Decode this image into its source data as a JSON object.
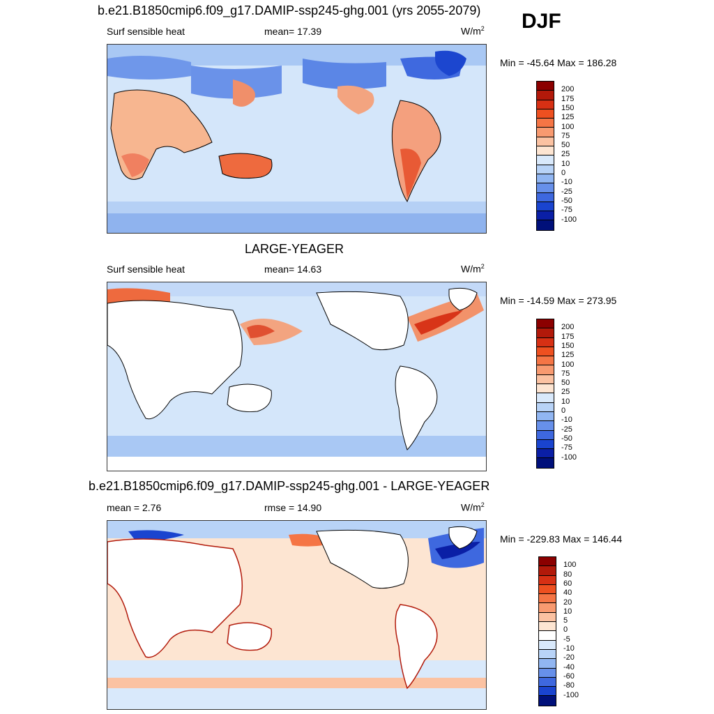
{
  "main_title": "DJF",
  "panels": [
    {
      "title": "b.e21.B1850cmip6.f09_g17.DAMIP-ssp245-ghg.001 (yrs 2055-2079)",
      "left_label": "Surf sensible heat",
      "center_label": "mean=  17.39",
      "unit": "W/m",
      "unit_sup": "2",
      "minmax": "Min = -45.64 Max = 186.28",
      "colorbar": {
        "levels": [
          "200",
          "175",
          "150",
          "125",
          "100",
          "75",
          "50",
          "25",
          "10",
          "0",
          "-10",
          "-25",
          "-50",
          "-75",
          "-100"
        ],
        "colors": [
          "#8b0000",
          "#b2190a",
          "#d73014",
          "#ee5020",
          "#f57545",
          "#f89a70",
          "#fbc2a2",
          "#fde5d2",
          "#d9e9fb",
          "#b8d3f7",
          "#91b6f2",
          "#6790ea",
          "#3e68df",
          "#1a44cf",
          "#0a1fa6",
          "#00107a"
        ]
      }
    },
    {
      "title": "LARGE-YEAGER",
      "left_label": "Surf sensible heat",
      "center_label": "mean=  14.63",
      "unit": "W/m",
      "unit_sup": "2",
      "minmax": "Min = -14.59 Max = 273.95",
      "colorbar": {
        "levels": [
          "200",
          "175",
          "150",
          "125",
          "100",
          "75",
          "50",
          "25",
          "10",
          "0",
          "-10",
          "-25",
          "-50",
          "-75",
          "-100"
        ],
        "colors": [
          "#8b0000",
          "#b2190a",
          "#d73014",
          "#ee5020",
          "#f57545",
          "#f89a70",
          "#fbc2a2",
          "#fde5d2",
          "#d9e9fb",
          "#b8d3f7",
          "#91b6f2",
          "#6790ea",
          "#3e68df",
          "#1a44cf",
          "#0a1fa6",
          "#00107a"
        ]
      }
    },
    {
      "title": "b.e21.B1850cmip6.f09_g17.DAMIP-ssp245-ghg.001 - LARGE-YEAGER",
      "left_label": "mean =   2.76",
      "center_label": "rmse =  14.90",
      "unit": "W/m",
      "unit_sup": "2",
      "minmax": "Min = -229.83 Max = 146.44",
      "colorbar": {
        "levels": [
          "100",
          "80",
          "60",
          "40",
          "20",
          "10",
          "5",
          "0",
          "-5",
          "-10",
          "-20",
          "-40",
          "-60",
          "-80",
          "-100"
        ],
        "colors": [
          "#8b0000",
          "#b2190a",
          "#d73014",
          "#ee5020",
          "#f57545",
          "#f89a70",
          "#fbc2a2",
          "#fde5d2",
          "#ffffff",
          "#d9e9fb",
          "#b8d3f7",
          "#91b6f2",
          "#6790ea",
          "#3e68df",
          "#1a44cf",
          "#00107a"
        ]
      }
    }
  ]
}
